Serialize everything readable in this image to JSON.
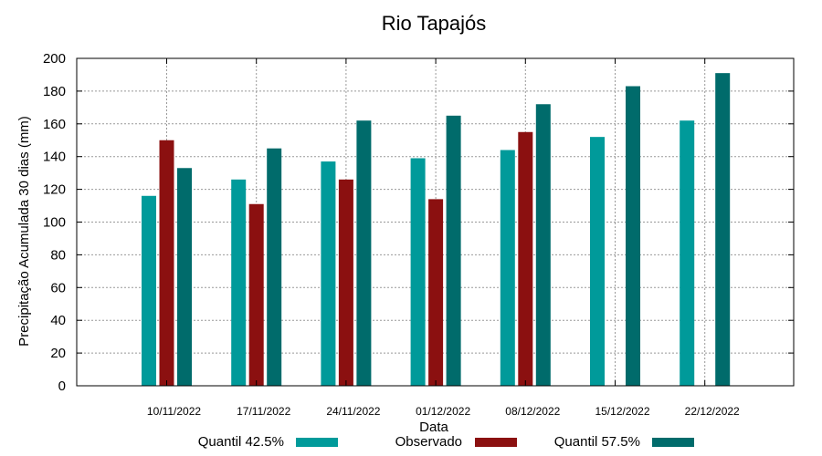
{
  "chart_data": {
    "type": "bar",
    "title": "Rio Tapajós",
    "xlabel": "Data",
    "ylabel": "Precipitação Acumulada 30 dias (mm)",
    "ylim": [
      0,
      200
    ],
    "yticks": [
      0,
      20,
      40,
      60,
      80,
      100,
      120,
      140,
      160,
      180,
      200
    ],
    "grid": true,
    "legend_position": "bottom",
    "categories": [
      "10/11/2022",
      "17/11/2022",
      "24/11/2022",
      "01/12/2022",
      "08/12/2022",
      "15/12/2022",
      "22/12/2022"
    ],
    "series": [
      {
        "name": "Quantil 42.5%",
        "color": "#009a9a",
        "values": [
          116,
          126,
          137,
          139,
          144,
          152,
          162
        ]
      },
      {
        "name": "Observado",
        "color": "#8b1010",
        "values": [
          150,
          111,
          126,
          114,
          155,
          null,
          null
        ]
      },
      {
        "name": "Quantil 57.5%",
        "color": "#006b6b",
        "values": [
          133,
          145,
          162,
          165,
          172,
          183,
          191
        ]
      }
    ]
  }
}
